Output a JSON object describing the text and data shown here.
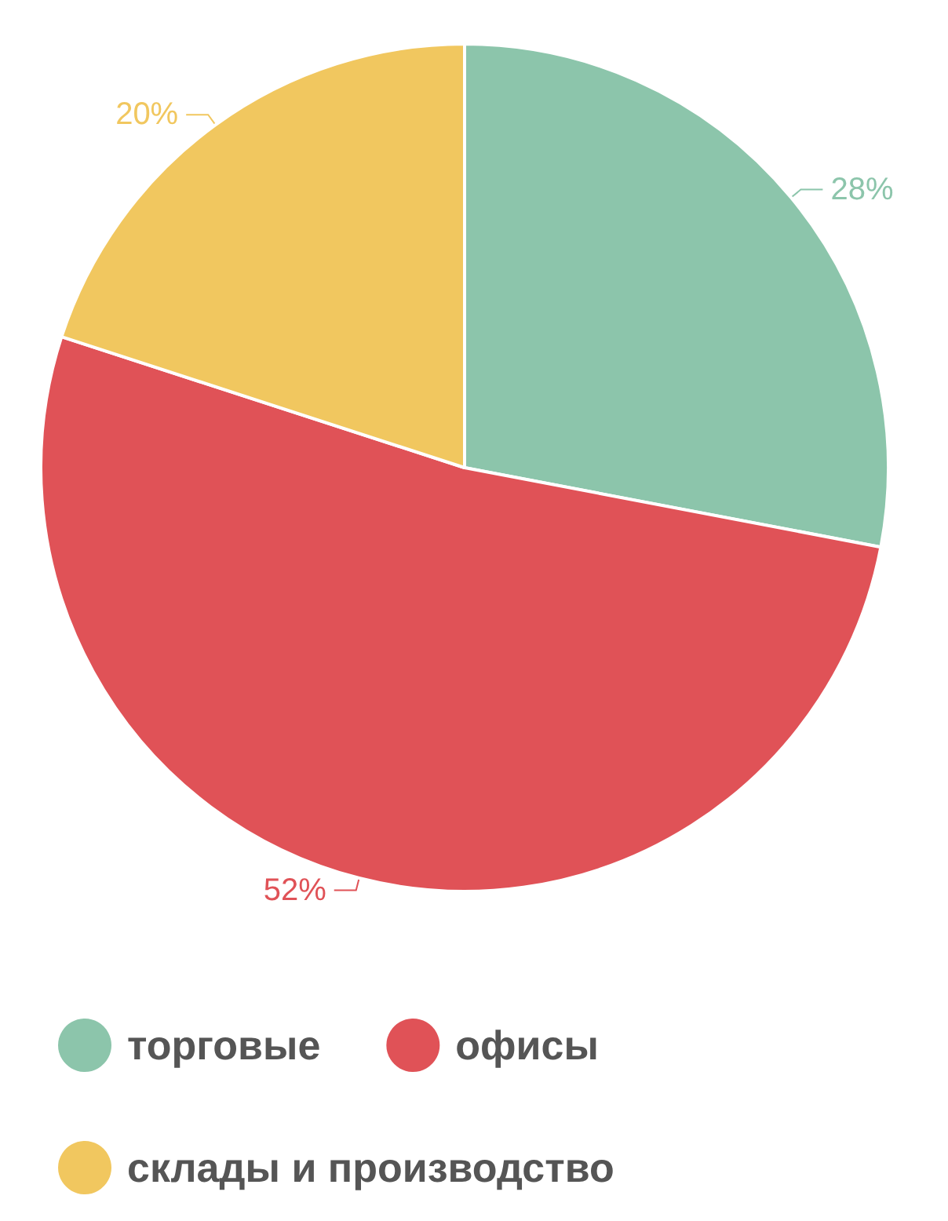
{
  "chart_data": {
    "type": "pie",
    "categories": [
      "торговые",
      "офисы",
      "склады и производство"
    ],
    "values": [
      28,
      52,
      20
    ],
    "colors": [
      "#8cc5ab",
      "#e05257",
      "#f1c75f"
    ],
    "value_labels": [
      "28%",
      "52%",
      "20%"
    ],
    "legend": "bottom"
  }
}
